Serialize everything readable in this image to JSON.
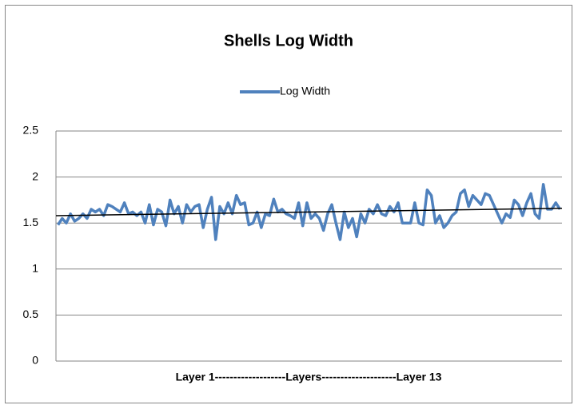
{
  "chart_data": {
    "type": "line",
    "title": "Shells Log Width",
    "x_label": "Layer 1-------------------Layers--------------------Layer 13",
    "series": [
      {
        "name": "Log Width",
        "color": "#4f81bd",
        "values": [
          1.48,
          1.55,
          1.5,
          1.6,
          1.52,
          1.55,
          1.6,
          1.55,
          1.65,
          1.62,
          1.65,
          1.58,
          1.7,
          1.68,
          1.65,
          1.62,
          1.72,
          1.6,
          1.62,
          1.58,
          1.62,
          1.5,
          1.7,
          1.48,
          1.65,
          1.62,
          1.47,
          1.75,
          1.6,
          1.68,
          1.5,
          1.7,
          1.62,
          1.68,
          1.7,
          1.45,
          1.65,
          1.78,
          1.32,
          1.68,
          1.6,
          1.72,
          1.6,
          1.8,
          1.7,
          1.72,
          1.48,
          1.5,
          1.62,
          1.45,
          1.6,
          1.58,
          1.76,
          1.62,
          1.65,
          1.6,
          1.58,
          1.55,
          1.72,
          1.47,
          1.72,
          1.55,
          1.6,
          1.55,
          1.42,
          1.6,
          1.7,
          1.5,
          1.32,
          1.62,
          1.45,
          1.55,
          1.35,
          1.6,
          1.5,
          1.65,
          1.6,
          1.7,
          1.6,
          1.58,
          1.68,
          1.62,
          1.72,
          1.5,
          1.5,
          1.5,
          1.72,
          1.5,
          1.48,
          1.86,
          1.8,
          1.5,
          1.58,
          1.45,
          1.5,
          1.58,
          1.62,
          1.82,
          1.86,
          1.68,
          1.8,
          1.75,
          1.7,
          1.82,
          1.8,
          1.7,
          1.6,
          1.5,
          1.6,
          1.56,
          1.75,
          1.7,
          1.58,
          1.72,
          1.82,
          1.6,
          1.55,
          1.92,
          1.65,
          1.65,
          1.72,
          1.65
        ]
      }
    ],
    "trendline": {
      "color": "#000000",
      "values": [
        1.58,
        1.66
      ]
    },
    "ylim": [
      0,
      2.5
    ],
    "yticks": [
      0,
      0.5,
      1,
      1.5,
      2,
      2.5
    ],
    "grid": true,
    "legend": "top"
  }
}
